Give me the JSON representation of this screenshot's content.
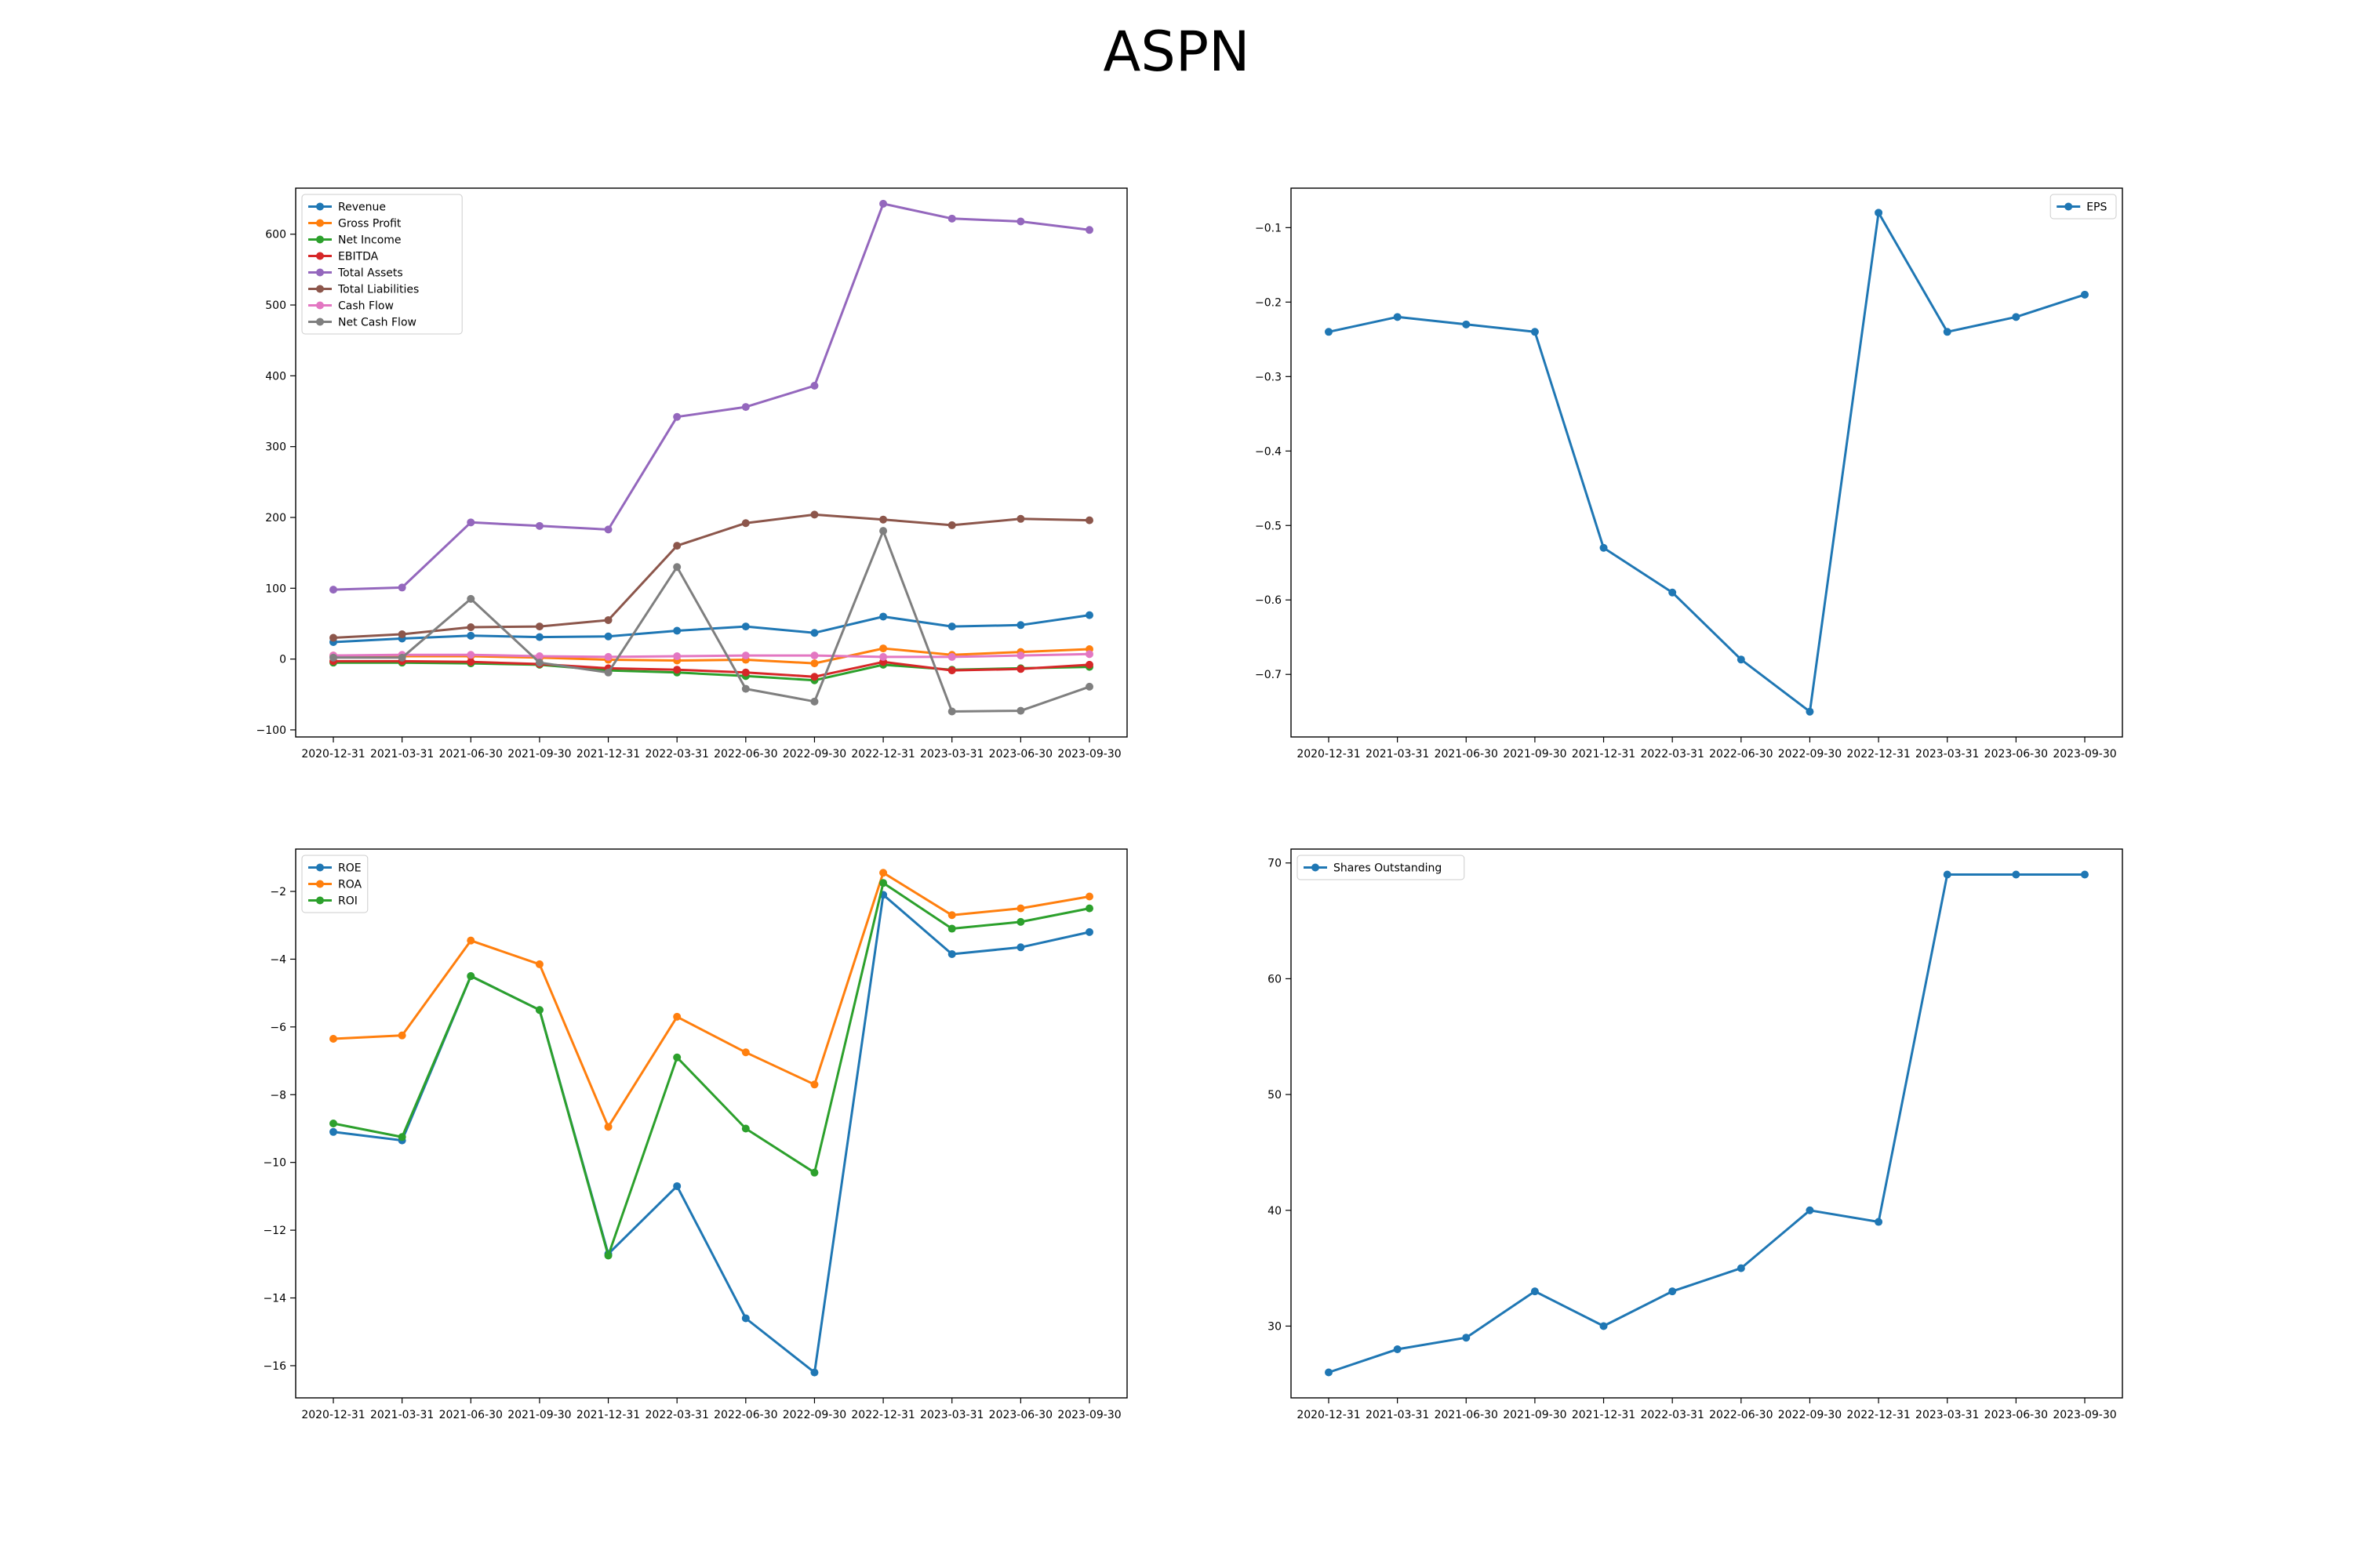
{
  "figure": {
    "title": "ASPN"
  },
  "chart_data": [
    {
      "type": "line",
      "x": [
        "2020-12-31",
        "2021-03-31",
        "2021-06-30",
        "2021-09-30",
        "2021-12-31",
        "2022-03-31",
        "2022-06-30",
        "2022-09-30",
        "2022-12-31",
        "2023-03-31",
        "2023-06-30",
        "2023-09-30"
      ],
      "ylim": [
        -110,
        665
      ],
      "yticks": [
        -100,
        0,
        100,
        200,
        300,
        400,
        500,
        600
      ],
      "legend": "upper left",
      "grid": false,
      "series": [
        {
          "name": "Revenue",
          "color": "#1f77b4",
          "values": [
            24,
            29,
            33,
            31,
            32,
            40,
            46,
            37,
            60,
            46,
            48,
            62
          ]
        },
        {
          "name": "Gross Profit",
          "color": "#ff7f0e",
          "values": [
            5,
            4,
            4,
            2,
            -1,
            -2,
            -1,
            -6,
            15,
            6,
            10,
            14
          ]
        },
        {
          "name": "Net Income",
          "color": "#2ca02c",
          "values": [
            -5,
            -5,
            -6,
            -8,
            -16,
            -19,
            -24,
            -30,
            -8,
            -15,
            -13,
            -11
          ]
        },
        {
          "name": "EBITDA",
          "color": "#d62728",
          "values": [
            -3,
            -3,
            -4,
            -7,
            -13,
            -15,
            -19,
            -25,
            -4,
            -16,
            -14,
            -8
          ]
        },
        {
          "name": "Total Assets",
          "color": "#9467bd",
          "values": [
            98,
            101,
            193,
            188,
            183,
            342,
            356,
            386,
            643,
            622,
            618,
            606
          ]
        },
        {
          "name": "Total Liabilities",
          "color": "#8c564b",
          "values": [
            30,
            35,
            45,
            46,
            55,
            160,
            192,
            204,
            197,
            189,
            198,
            196
          ]
        },
        {
          "name": "Cash Flow",
          "color": "#e377c2",
          "values": [
            5,
            6,
            6,
            4,
            3,
            4,
            5,
            5,
            3,
            3,
            5,
            7
          ]
        },
        {
          "name": "Net Cash Flow",
          "color": "#7f7f7f",
          "values": [
            2,
            2,
            85,
            -5,
            -19,
            130,
            -42,
            -60,
            181,
            -74,
            -73,
            -39
          ]
        }
      ]
    },
    {
      "type": "line",
      "x": [
        "2020-12-31",
        "2021-03-31",
        "2021-06-30",
        "2021-09-30",
        "2021-12-31",
        "2022-03-31",
        "2022-06-30",
        "2022-09-30",
        "2022-12-31",
        "2023-03-31",
        "2023-06-30",
        "2023-09-30"
      ],
      "ylim": [
        -0.784,
        -0.047
      ],
      "yticks": [
        -0.7,
        -0.6,
        -0.5,
        -0.4,
        -0.3,
        -0.2,
        -0.1
      ],
      "legend": "upper right",
      "grid": false,
      "series": [
        {
          "name": "EPS",
          "color": "#1f77b4",
          "values": [
            -0.24,
            -0.22,
            -0.23,
            -0.24,
            -0.53,
            -0.59,
            -0.68,
            -0.75,
            -0.08,
            -0.24,
            -0.22,
            -0.19
          ]
        }
      ]
    },
    {
      "type": "line",
      "x": [
        "2020-12-31",
        "2021-03-31",
        "2021-06-30",
        "2021-09-30",
        "2021-12-31",
        "2022-03-31",
        "2022-06-30",
        "2022-09-30",
        "2022-12-31",
        "2023-03-31",
        "2023-06-30",
        "2023-09-30"
      ],
      "ylim": [
        -16.95,
        -0.75
      ],
      "yticks": [
        -16,
        -14,
        -12,
        -10,
        -8,
        -6,
        -4,
        -2
      ],
      "legend": "upper left",
      "grid": false,
      "series": [
        {
          "name": "ROE",
          "color": "#1f77b4",
          "values": [
            -9.1,
            -9.35,
            -4.5,
            -5.5,
            -12.7,
            -10.7,
            -14.6,
            -16.2,
            -2.1,
            -3.85,
            -3.65,
            -3.2
          ]
        },
        {
          "name": "ROA",
          "color": "#ff7f0e",
          "values": [
            -6.35,
            -6.25,
            -3.45,
            -4.15,
            -8.95,
            -5.7,
            -6.75,
            -7.7,
            -1.45,
            -2.7,
            -2.5,
            -2.15
          ]
        },
        {
          "name": "ROI",
          "color": "#2ca02c",
          "values": [
            -8.85,
            -9.25,
            -4.5,
            -5.5,
            -12.75,
            -6.9,
            -9.0,
            -10.3,
            -1.75,
            -3.1,
            -2.9,
            -2.5
          ]
        }
      ]
    },
    {
      "type": "line",
      "x": [
        "2020-12-31",
        "2021-03-31",
        "2021-06-30",
        "2021-09-30",
        "2021-12-31",
        "2022-03-31",
        "2022-06-30",
        "2022-09-30",
        "2022-12-31",
        "2023-03-31",
        "2023-06-30",
        "2023-09-30"
      ],
      "ylim": [
        23.8,
        71.2
      ],
      "yticks": [
        30,
        40,
        50,
        60,
        70
      ],
      "legend": "upper left",
      "grid": false,
      "series": [
        {
          "name": "Shares Outstanding",
          "color": "#1f77b4",
          "values": [
            26,
            28,
            29,
            33,
            30,
            33,
            35,
            40,
            39,
            69,
            69,
            69
          ]
        }
      ]
    }
  ]
}
